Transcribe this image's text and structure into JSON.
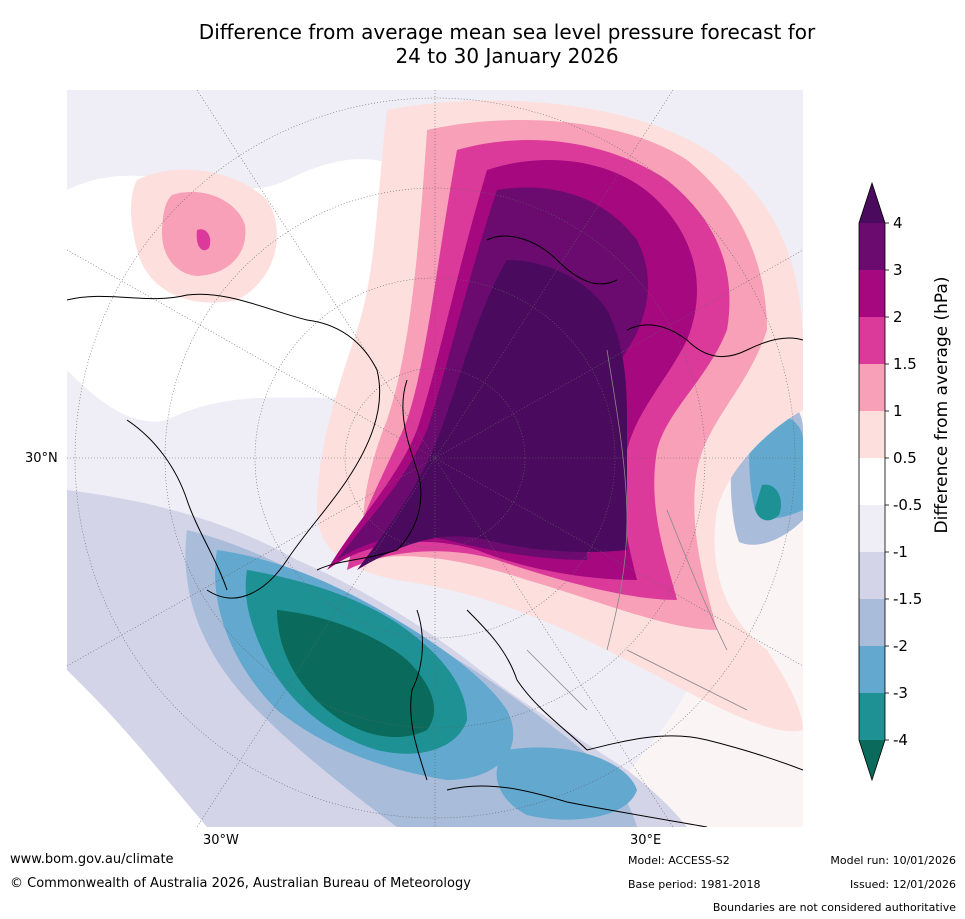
{
  "title": {
    "line1": "Difference from average mean sea level pressure forecast for",
    "line2": "24 to 30 January 2026"
  },
  "map": {
    "projection": "polar-stereographic",
    "lat_label": "30°N",
    "lon_labels": [
      "30°W",
      "30°E"
    ]
  },
  "colorbar": {
    "title": "Difference from average (hPa)",
    "tick_labels": [
      "4",
      "3",
      "2",
      "1.5",
      "1",
      "0.5",
      "-0.5",
      "-1",
      "-1.5",
      "-2",
      "-3",
      "-4"
    ],
    "colors": {
      "gt4": "#4a0a5e",
      "3_4": "#6b0a6f",
      "2_3": "#a5087f",
      "1_5_2": "#dc3a9a",
      "1_1_5": "#f7a0b8",
      "0_5_1": "#fde0dd",
      "neutral": "#ffffff",
      "m1_m0_5": "#efedf5",
      "m1_5_m1": "#d3d4e8",
      "m2_m1_5": "#a9bcda",
      "m3_m2": "#62a8cf",
      "m4_m3": "#1d9193",
      "lt_m4": "#0a6b5c"
    }
  },
  "footer": {
    "website": "www.bom.gov.au/climate",
    "copyright": "© Commonwealth of Australia 2026, Australian Bureau of Meteorology",
    "model": "Model: ACCESS-S2",
    "base_period": "Base period: 1981-2018",
    "model_run": "Model run: 10/01/2026",
    "issued": "Issued: 12/01/2026",
    "disclaimer": "Boundaries are not considered authoritative"
  }
}
